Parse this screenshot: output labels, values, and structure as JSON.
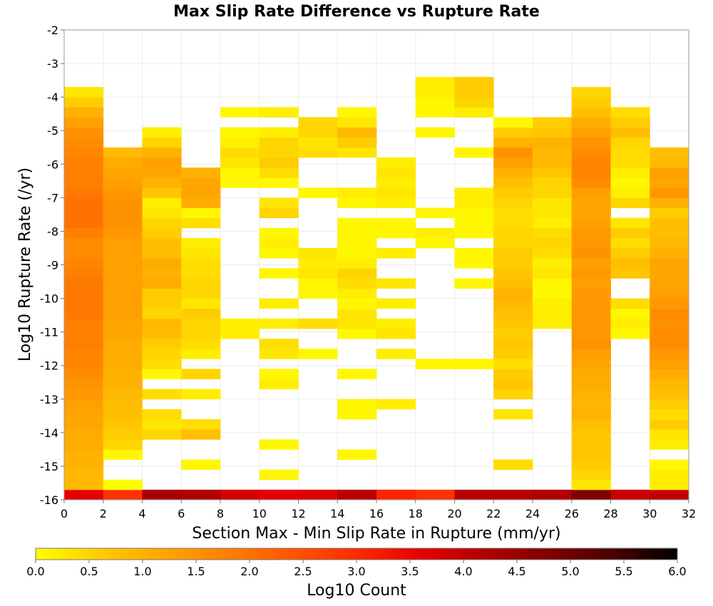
{
  "chart_data": {
    "type": "heatmap",
    "title": "Max Slip Rate Difference vs Rupture Rate",
    "xlabel": "Section Max - Min Slip Rate in Rupture (mm/yr)",
    "ylabel": "Log10 Rupture Rate (/yr)",
    "xlim": [
      0,
      32
    ],
    "ylim": [
      -16,
      -2
    ],
    "x_ticks": [
      "0",
      "2",
      "4",
      "6",
      "8",
      "10",
      "12",
      "14",
      "16",
      "18",
      "20",
      "22",
      "24",
      "26",
      "28",
      "30",
      "32"
    ],
    "y_ticks": [
      "-2",
      "-3",
      "-4",
      "-5",
      "-6",
      "-7",
      "-8",
      "-9",
      "-10",
      "-11",
      "-12",
      "-13",
      "-14",
      "-15",
      "-16"
    ],
    "grid": true,
    "x_bin_width": 2,
    "y_bin_height": 0.3,
    "colorbar": {
      "label": "Log10 Count",
      "min": 0.0,
      "max": 6.0,
      "ticks": [
        "0.0",
        "0.5",
        "1.0",
        "1.5",
        "2.0",
        "2.5",
        "3.0",
        "3.5",
        "4.0",
        "4.5",
        "5.0",
        "5.5",
        "6.0"
      ],
      "colors": [
        "#ffff00",
        "#ffcc00",
        "#ffa500",
        "#ff7f00",
        "#ff5500",
        "#ff2a00",
        "#e60000",
        "#b00000",
        "#800000",
        "#4a0000",
        "#000000"
      ]
    },
    "columns": [
      {
        "x": 0,
        "bottom": -16,
        "values": [
          3.6,
          0.9,
          0.9,
          1.0,
          1.0,
          1.1,
          1.1,
          1.2,
          1.2,
          1.3,
          1.4,
          1.5,
          1.6,
          1.7,
          1.7,
          1.8,
          1.8,
          1.8,
          1.9,
          1.9,
          1.9,
          1.9,
          1.8,
          1.7,
          1.6,
          1.6,
          1.8,
          2.0,
          2.0,
          2.0,
          1.9,
          1.8,
          1.8,
          1.8,
          1.7,
          1.6,
          1.5,
          1.3,
          1.0,
          0.6,
          0.3
        ]
      },
      {
        "x": 2,
        "bottom": -16,
        "values": [
          2.9,
          0.0,
          null,
          null,
          0.1,
          0.5,
          0.6,
          0.7,
          0.8,
          0.8,
          0.9,
          1.0,
          1.0,
          1.1,
          1.1,
          1.1,
          1.2,
          1.2,
          1.3,
          1.3,
          1.3,
          1.3,
          1.3,
          1.3,
          1.3,
          1.3,
          1.4,
          1.5,
          1.5,
          1.5,
          1.4,
          1.3,
          1.2,
          1.1,
          0.9
        ]
      },
      {
        "x": 4,
        "bottom": -16,
        "values": [
          4.3,
          null,
          null,
          null,
          null,
          null,
          0.5,
          0.3,
          0.4,
          null,
          0.4,
          null,
          0.1,
          0.4,
          0.5,
          0.6,
          0.8,
          0.9,
          0.5,
          0.6,
          0.6,
          1.1,
          1.0,
          1.1,
          0.8,
          0.8,
          0.6,
          0.5,
          0.3,
          0.2,
          0.7,
          1.0,
          1.2,
          1.3,
          1.0,
          0.5,
          0.2
        ]
      },
      {
        "x": 6,
        "bottom": -16,
        "values": [
          4.2,
          null,
          null,
          0.1,
          null,
          null,
          0.8,
          0.4,
          null,
          null,
          0.2,
          null,
          0.5,
          null,
          0.2,
          0.4,
          0.5,
          0.5,
          0.6,
          0.3,
          0.5,
          0.5,
          0.4,
          0.4,
          0.3,
          0.2,
          null,
          0.4,
          0.1,
          1.1,
          1.2,
          1.2,
          1.0
        ]
      },
      {
        "x": 8,
        "bottom": -16,
        "values": [
          3.8,
          null,
          null,
          null,
          null,
          null,
          null,
          null,
          null,
          null,
          null,
          null,
          null,
          null,
          null,
          null,
          0.2,
          0.2,
          null,
          null,
          null,
          null,
          null,
          null,
          null,
          null,
          null,
          null,
          null,
          null,
          null,
          0.1,
          0.1,
          0.3,
          0.4,
          0.2,
          0.1,
          null,
          0.1
        ]
      },
      {
        "x": 10,
        "bottom": -16,
        "values": [
          3.6,
          null,
          0.1,
          null,
          null,
          0.1,
          null,
          null,
          null,
          null,
          null,
          0.2,
          0.1,
          null,
          0.3,
          0.4,
          null,
          0.2,
          null,
          0.2,
          null,
          null,
          0.1,
          null,
          0.1,
          0.2,
          0.1,
          null,
          0.5,
          0.3,
          null,
          0.1,
          0.4,
          0.6,
          0.5,
          0.5,
          0.2,
          null,
          0.2
        ]
      },
      {
        "x": 12,
        "bottom": -16,
        "values": [
          3.7,
          null,
          null,
          null,
          null,
          null,
          null,
          null,
          null,
          null,
          null,
          null,
          null,
          null,
          0.1,
          null,
          null,
          0.4,
          null,
          null,
          0.1,
          0.1,
          0.3,
          0.2,
          0.3,
          null,
          null,
          null,
          null,
          null,
          0.1,
          null,
          null,
          null,
          0.4,
          0.3,
          0.5,
          0.5
        ]
      },
      {
        "x": 14,
        "bottom": -16,
        "values": [
          4.1,
          null,
          null,
          null,
          0.1,
          null,
          null,
          null,
          0.1,
          0.1,
          null,
          null,
          0.1,
          null,
          null,
          null,
          0.1,
          0.3,
          0.3,
          0.1,
          0.2,
          0.4,
          0.5,
          0.2,
          0.1,
          0.1,
          0.1,
          0.1,
          null,
          0.1,
          0.2,
          null,
          null,
          null,
          0.3,
          0.6,
          0.9,
          0.3,
          0.1
        ]
      },
      {
        "x": 16,
        "bottom": -16,
        "values": [
          3.1,
          null,
          null,
          null,
          null,
          null,
          null,
          null,
          null,
          0.2,
          null,
          null,
          null,
          null,
          0.2,
          null,
          0.3,
          0.2,
          null,
          0.2,
          null,
          0.3,
          null,
          null,
          0.2,
          null,
          0.1,
          0.1,
          null,
          0.2,
          0.3,
          0.2,
          0.3,
          0.2
        ]
      },
      {
        "x": 18,
        "bottom": -16,
        "values": [
          2.9,
          null,
          null,
          null,
          null,
          null,
          null,
          null,
          null,
          null,
          null,
          null,
          null,
          0.1,
          null,
          null,
          null,
          null,
          null,
          null,
          null,
          null,
          null,
          null,
          null,
          0.1,
          0.2,
          null,
          0.1,
          null,
          null,
          null,
          null,
          null,
          null,
          null,
          0.1,
          null,
          0.1,
          0.1,
          0.2,
          0.2
        ]
      },
      {
        "x": 20,
        "bottom": -16,
        "values": [
          4.1,
          null,
          null,
          null,
          null,
          null,
          null,
          null,
          null,
          null,
          null,
          null,
          null,
          0.1,
          null,
          null,
          null,
          null,
          null,
          null,
          null,
          0.1,
          null,
          0.1,
          0.1,
          null,
          0.1,
          0.1,
          0.1,
          0.2,
          0.2,
          null,
          null,
          null,
          0.1,
          null,
          null,
          null,
          0.2,
          0.5,
          0.6,
          0.6
        ]
      },
      {
        "x": 22,
        "bottom": -16,
        "values": [
          4.1,
          null,
          null,
          0.4,
          null,
          null,
          null,
          null,
          0.3,
          null,
          0.5,
          0.7,
          0.6,
          0.4,
          0.6,
          0.7,
          0.6,
          0.7,
          0.8,
          0.9,
          1.0,
          0.8,
          0.7,
          0.6,
          0.6,
          0.5,
          0.5,
          0.4,
          0.4,
          0.5,
          0.6,
          0.8,
          1.0,
          1.3,
          1.5,
          1.0,
          0.6,
          0.1
        ]
      },
      {
        "x": 24,
        "bottom": -16,
        "values": [
          4.2,
          null,
          null,
          null,
          null,
          null,
          null,
          null,
          null,
          null,
          null,
          null,
          null,
          null,
          null,
          null,
          null,
          0.2,
          0.2,
          0.2,
          0.1,
          0.1,
          0.3,
          0.2,
          0.4,
          0.5,
          0.4,
          0.2,
          0.3,
          0.3,
          0.5,
          0.5,
          0.7,
          0.9,
          0.9,
          1.0,
          0.7,
          0.6
        ]
      },
      {
        "x": 26,
        "bottom": -16,
        "values": [
          4.8,
          0.3,
          0.5,
          0.6,
          0.7,
          0.7,
          0.7,
          0.8,
          1.0,
          0.9,
          1.0,
          1.1,
          1.1,
          1.2,
          1.3,
          1.5,
          1.4,
          1.4,
          1.4,
          1.4,
          1.4,
          1.3,
          1.4,
          1.3,
          1.5,
          1.4,
          1.4,
          1.3,
          1.2,
          1.2,
          1.3,
          1.6,
          1.7,
          1.7,
          1.6,
          1.5,
          1.3,
          1.1,
          0.8,
          0.6,
          0.5
        ]
      },
      {
        "x": 28,
        "bottom": -16,
        "values": [
          3.9,
          null,
          null,
          null,
          null,
          null,
          null,
          null,
          null,
          null,
          null,
          null,
          null,
          null,
          null,
          null,
          0.1,
          0.2,
          0.1,
          0.4,
          null,
          null,
          0.7,
          0.8,
          0.6,
          0.4,
          0.6,
          0.3,
          null,
          0.5,
          0.2,
          0.1,
          0.2,
          0.4,
          0.4,
          0.5,
          0.8,
          0.6,
          0.4
        ]
      },
      {
        "x": 30,
        "bottom": -16,
        "values": [
          4.0,
          0.2,
          0.2,
          0.1,
          null,
          0.2,
          0.3,
          0.6,
          0.4,
          0.6,
          0.8,
          0.9,
          1.1,
          1.3,
          1.4,
          1.6,
          1.6,
          1.5,
          1.6,
          1.4,
          1.3,
          1.2,
          1.2,
          1.2,
          1.0,
          0.9,
          0.8,
          0.8,
          0.6,
          1.0,
          1.4,
          1.2,
          1.3,
          0.9,
          0.8
        ]
      }
    ]
  }
}
